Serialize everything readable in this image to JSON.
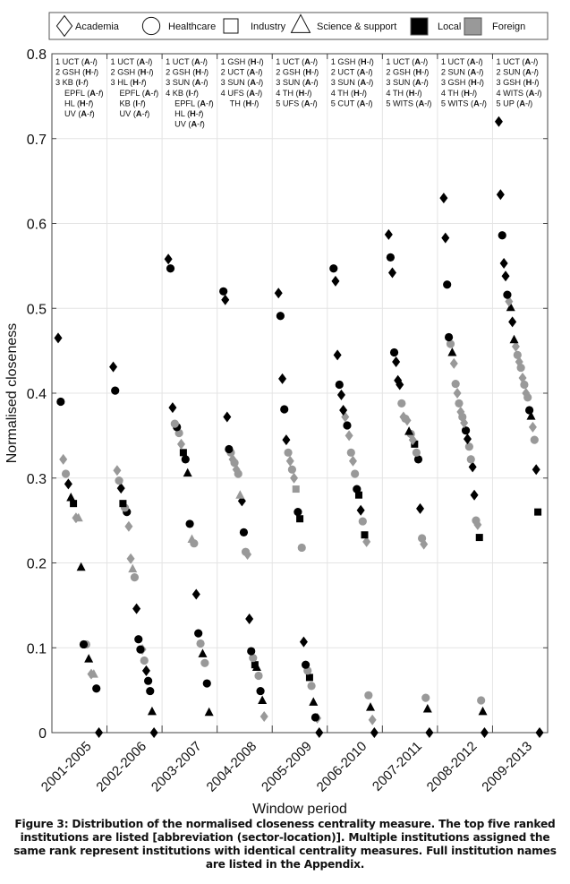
{
  "chart_data": {
    "type": "scatter",
    "title": "",
    "xlabel": "Window period",
    "ylabel": "Normalised closeness",
    "ylim": [
      0,
      0.8
    ],
    "yticks": [
      "0",
      "0.1",
      "0.2",
      "0.3",
      "0.4",
      "0.5",
      "0.6",
      "0.7",
      "0.8"
    ],
    "grid": true,
    "legend_position": "top",
    "legend": [
      {
        "key": "d",
        "label": "Academia",
        "kind": "shape"
      },
      {
        "key": "c",
        "label": "Healthcare",
        "kind": "shape"
      },
      {
        "key": "s",
        "label": "Industry",
        "kind": "shape"
      },
      {
        "key": "t",
        "label": "Science & support",
        "kind": "shape"
      },
      {
        "key": "l",
        "label": "Local",
        "kind": "fill"
      },
      {
        "key": "f",
        "label": "Foreign",
        "kind": "fill"
      }
    ],
    "colors": {
      "l": "#000000",
      "f": "#999999"
    },
    "categories": [
      "2001-2005",
      "2002-2006",
      "2003-2007",
      "2004-2008",
      "2005-2009",
      "2006-2010",
      "2007-2011",
      "2008-2012",
      "2009-2013"
    ],
    "top_ranked": [
      [
        [
          "1",
          "UCT",
          "A",
          "l"
        ],
        [
          "2",
          "GSH",
          "H",
          "l"
        ],
        [
          "3",
          "KB",
          "I",
          "f"
        ],
        [
          "",
          "EPFL",
          "A",
          "f"
        ],
        [
          "",
          "HL",
          "H",
          "f"
        ],
        [
          "",
          "UV",
          "A",
          "f"
        ]
      ],
      [
        [
          "1",
          "UCT",
          "A",
          "l"
        ],
        [
          "2",
          "GSH",
          "H",
          "l"
        ],
        [
          "3",
          "HL",
          "H",
          "f"
        ],
        [
          "",
          "EPFL",
          "A",
          "f"
        ],
        [
          "",
          "KB",
          "I",
          "f"
        ],
        [
          "",
          "UV",
          "A",
          "f"
        ]
      ],
      [
        [
          "1",
          "UCT",
          "A",
          "l"
        ],
        [
          "2",
          "GSH",
          "H",
          "l"
        ],
        [
          "3",
          "SUN",
          "A",
          "l"
        ],
        [
          "4",
          "KB",
          "I",
          "f"
        ],
        [
          "",
          "EPFL",
          "A",
          "f"
        ],
        [
          "",
          "HL",
          "H",
          "f"
        ],
        [
          "",
          "UV",
          "A",
          "f"
        ]
      ],
      [
        [
          "1",
          "GSH",
          "H",
          "l"
        ],
        [
          "2",
          "UCT",
          "A",
          "l"
        ],
        [
          "3",
          "SUN",
          "A",
          "l"
        ],
        [
          "4",
          "UFS",
          "A",
          "l"
        ],
        [
          "",
          "TH",
          "H",
          "l"
        ]
      ],
      [
        [
          "1",
          "UCT",
          "A",
          "l"
        ],
        [
          "2",
          "GSH",
          "H",
          "l"
        ],
        [
          "3",
          "SUN",
          "A",
          "l"
        ],
        [
          "4",
          "TH",
          "H",
          "l"
        ],
        [
          "5",
          "UFS",
          "A",
          "l"
        ]
      ],
      [
        [
          "1",
          "GSH",
          "H",
          "l"
        ],
        [
          "2",
          "UCT",
          "A",
          "l"
        ],
        [
          "3",
          "SUN",
          "A",
          "l"
        ],
        [
          "4",
          "TH",
          "H",
          "l"
        ],
        [
          "5",
          "CUT",
          "A",
          "l"
        ]
      ],
      [
        [
          "1",
          "UCT",
          "A",
          "l"
        ],
        [
          "2",
          "GSH",
          "H",
          "l"
        ],
        [
          "3",
          "SUN",
          "A",
          "l"
        ],
        [
          "4",
          "TH",
          "H",
          "l"
        ],
        [
          "5",
          "WITS",
          "A",
          "l"
        ]
      ],
      [
        [
          "1",
          "UCT",
          "A",
          "l"
        ],
        [
          "2",
          "SUN",
          "A",
          "l"
        ],
        [
          "3",
          "GSH",
          "H",
          "l"
        ],
        [
          "4",
          "TH",
          "H",
          "l"
        ],
        [
          "5",
          "WITS",
          "A",
          "l"
        ]
      ],
      [
        [
          "1",
          "UCT",
          "A",
          "l"
        ],
        [
          "2",
          "SUN",
          "A",
          "l"
        ],
        [
          "3",
          "GSH",
          "H",
          "l"
        ],
        [
          "4",
          "WITS",
          "A",
          "l"
        ],
        [
          "5",
          "UP",
          "A",
          "l"
        ]
      ]
    ],
    "series": [
      [
        [
          "d",
          "l",
          0.465
        ],
        [
          "c",
          "l",
          0.39
        ],
        [
          "d",
          "f",
          0.322
        ],
        [
          "c",
          "f",
          0.305
        ],
        [
          "d",
          "l",
          0.293
        ],
        [
          "t",
          "l",
          0.277
        ],
        [
          "s",
          "l",
          0.27
        ],
        [
          "d",
          "f",
          0.253
        ],
        [
          "t",
          "f",
          0.253
        ],
        [
          "t",
          "l",
          0.195
        ],
        [
          "c",
          "l",
          0.104
        ],
        [
          "c",
          "f",
          0.104
        ],
        [
          "t",
          "l",
          0.087
        ],
        [
          "d",
          "f",
          0.069
        ],
        [
          "t",
          "f",
          0.069
        ],
        [
          "c",
          "l",
          0.052
        ],
        [
          "d",
          "l",
          0.0
        ]
      ],
      [
        [
          "d",
          "l",
          0.431
        ],
        [
          "c",
          "l",
          0.403
        ],
        [
          "d",
          "f",
          0.309
        ],
        [
          "c",
          "f",
          0.297
        ],
        [
          "d",
          "l",
          0.288
        ],
        [
          "s",
          "l",
          0.27
        ],
        [
          "c",
          "f",
          0.265
        ],
        [
          "c",
          "l",
          0.26
        ],
        [
          "d",
          "f",
          0.243
        ],
        [
          "d",
          "f",
          0.205
        ],
        [
          "t",
          "f",
          0.193
        ],
        [
          "c",
          "f",
          0.183
        ],
        [
          "d",
          "l",
          0.146
        ],
        [
          "c",
          "l",
          0.11
        ],
        [
          "c",
          "l",
          0.098
        ],
        [
          "d",
          "f",
          0.098
        ],
        [
          "c",
          "f",
          0.085
        ],
        [
          "d",
          "l",
          0.073
        ],
        [
          "c",
          "l",
          0.061
        ],
        [
          "c",
          "l",
          0.049
        ],
        [
          "t",
          "l",
          0.025
        ],
        [
          "d",
          "l",
          0.0
        ]
      ],
      [
        [
          "d",
          "l",
          0.558
        ],
        [
          "c",
          "l",
          0.547
        ],
        [
          "d",
          "l",
          0.383
        ],
        [
          "c",
          "f",
          0.364
        ],
        [
          "c",
          "l",
          0.36
        ],
        [
          "c",
          "f",
          0.353
        ],
        [
          "d",
          "f",
          0.34
        ],
        [
          "s",
          "l",
          0.33
        ],
        [
          "c",
          "l",
          0.322
        ],
        [
          "t",
          "l",
          0.306
        ],
        [
          "c",
          "l",
          0.246
        ],
        [
          "t",
          "f",
          0.228
        ],
        [
          "c",
          "f",
          0.223
        ],
        [
          "d",
          "l",
          0.163
        ],
        [
          "c",
          "l",
          0.117
        ],
        [
          "c",
          "f",
          0.105
        ],
        [
          "t",
          "l",
          0.093
        ],
        [
          "c",
          "f",
          0.082
        ],
        [
          "c",
          "l",
          0.058
        ],
        [
          "t",
          "l",
          0.024
        ]
      ],
      [
        [
          "c",
          "l",
          0.52
        ],
        [
          "d",
          "l",
          0.51
        ],
        [
          "d",
          "l",
          0.372
        ],
        [
          "c",
          "l",
          0.334
        ],
        [
          "c",
          "f",
          0.33
        ],
        [
          "d",
          "f",
          0.322
        ],
        [
          "c",
          "f",
          0.318
        ],
        [
          "d",
          "f",
          0.31
        ],
        [
          "c",
          "f",
          0.305
        ],
        [
          "t",
          "f",
          0.28
        ],
        [
          "d",
          "l",
          0.273
        ],
        [
          "c",
          "l",
          0.236
        ],
        [
          "c",
          "f",
          0.213
        ],
        [
          "d",
          "f",
          0.21
        ],
        [
          "d",
          "l",
          0.134
        ],
        [
          "c",
          "l",
          0.096
        ],
        [
          "c",
          "f",
          0.088
        ],
        [
          "s",
          "l",
          0.08
        ],
        [
          "t",
          "l",
          0.077
        ],
        [
          "c",
          "f",
          0.067
        ],
        [
          "c",
          "l",
          0.049
        ],
        [
          "t",
          "l",
          0.038
        ],
        [
          "d",
          "f",
          0.019
        ]
      ],
      [
        [
          "d",
          "l",
          0.518
        ],
        [
          "c",
          "l",
          0.491
        ],
        [
          "d",
          "l",
          0.417
        ],
        [
          "c",
          "l",
          0.381
        ],
        [
          "d",
          "l",
          0.345
        ],
        [
          "c",
          "f",
          0.33
        ],
        [
          "d",
          "f",
          0.32
        ],
        [
          "c",
          "f",
          0.31
        ],
        [
          "d",
          "f",
          0.3
        ],
        [
          "s",
          "f",
          0.287
        ],
        [
          "c",
          "l",
          0.26
        ],
        [
          "s",
          "l",
          0.252
        ],
        [
          "c",
          "f",
          0.218
        ],
        [
          "d",
          "l",
          0.107
        ],
        [
          "c",
          "l",
          0.08
        ],
        [
          "c",
          "f",
          0.073
        ],
        [
          "s",
          "l",
          0.065
        ],
        [
          "c",
          "f",
          0.055
        ],
        [
          "t",
          "l",
          0.036
        ],
        [
          "c",
          "l",
          0.018
        ],
        [
          "d",
          "f",
          0.017
        ],
        [
          "d",
          "l",
          0.0
        ]
      ],
      [
        [
          "c",
          "l",
          0.547
        ],
        [
          "d",
          "l",
          0.532
        ],
        [
          "d",
          "l",
          0.445
        ],
        [
          "c",
          "l",
          0.41
        ],
        [
          "d",
          "l",
          0.398
        ],
        [
          "d",
          "l",
          0.38
        ],
        [
          "d",
          "f",
          0.372
        ],
        [
          "c",
          "l",
          0.362
        ],
        [
          "d",
          "f",
          0.35
        ],
        [
          "c",
          "f",
          0.33
        ],
        [
          "d",
          "f",
          0.32
        ],
        [
          "c",
          "f",
          0.305
        ],
        [
          "c",
          "l",
          0.287
        ],
        [
          "s",
          "l",
          0.28
        ],
        [
          "d",
          "l",
          0.262
        ],
        [
          "c",
          "f",
          0.249
        ],
        [
          "s",
          "l",
          0.233
        ],
        [
          "d",
          "f",
          0.225
        ],
        [
          "c",
          "f",
          0.044
        ],
        [
          "t",
          "l",
          0.03
        ],
        [
          "d",
          "f",
          0.015
        ],
        [
          "d",
          "l",
          0.0
        ]
      ],
      [
        [
          "d",
          "l",
          0.587
        ],
        [
          "c",
          "l",
          0.56
        ],
        [
          "d",
          "l",
          0.542
        ],
        [
          "c",
          "l",
          0.448
        ],
        [
          "d",
          "l",
          0.437
        ],
        [
          "d",
          "l",
          0.415
        ],
        [
          "d",
          "l",
          0.41
        ],
        [
          "c",
          "f",
          0.388
        ],
        [
          "d",
          "f",
          0.372
        ],
        [
          "c",
          "f",
          0.37
        ],
        [
          "d",
          "f",
          0.368
        ],
        [
          "t",
          "l",
          0.355
        ],
        [
          "c",
          "f",
          0.352
        ],
        [
          "d",
          "f",
          0.345
        ],
        [
          "s",
          "l",
          0.34
        ],
        [
          "c",
          "f",
          0.33
        ],
        [
          "c",
          "l",
          0.322
        ],
        [
          "d",
          "l",
          0.264
        ],
        [
          "c",
          "f",
          0.229
        ],
        [
          "d",
          "f",
          0.222
        ],
        [
          "c",
          "f",
          0.041
        ],
        [
          "t",
          "l",
          0.028
        ],
        [
          "d",
          "l",
          0.0
        ]
      ],
      [
        [
          "d",
          "l",
          0.63
        ],
        [
          "d",
          "l",
          0.583
        ],
        [
          "c",
          "l",
          0.528
        ],
        [
          "c",
          "l",
          0.466
        ],
        [
          "c",
          "f",
          0.458
        ],
        [
          "t",
          "l",
          0.448
        ],
        [
          "d",
          "f",
          0.435
        ],
        [
          "c",
          "f",
          0.411
        ],
        [
          "d",
          "f",
          0.4
        ],
        [
          "c",
          "f",
          0.388
        ],
        [
          "d",
          "f",
          0.378
        ],
        [
          "c",
          "f",
          0.372
        ],
        [
          "d",
          "f",
          0.365
        ],
        [
          "c",
          "l",
          0.356
        ],
        [
          "d",
          "l",
          0.346
        ],
        [
          "c",
          "f",
          0.337
        ],
        [
          "c",
          "f",
          0.322
        ],
        [
          "d",
          "l",
          0.313
        ],
        [
          "d",
          "l",
          0.28
        ],
        [
          "c",
          "f",
          0.25
        ],
        [
          "d",
          "f",
          0.245
        ],
        [
          "s",
          "l",
          0.23
        ],
        [
          "c",
          "f",
          0.038
        ],
        [
          "t",
          "l",
          0.025
        ],
        [
          "d",
          "l",
          0.0
        ]
      ],
      [
        [
          "d",
          "l",
          0.72
        ],
        [
          "d",
          "l",
          0.634
        ],
        [
          "c",
          "l",
          0.586
        ],
        [
          "d",
          "l",
          0.553
        ],
        [
          "d",
          "l",
          0.538
        ],
        [
          "c",
          "l",
          0.516
        ],
        [
          "d",
          "f",
          0.508
        ],
        [
          "t",
          "l",
          0.501
        ],
        [
          "d",
          "l",
          0.484
        ],
        [
          "t",
          "l",
          0.463
        ],
        [
          "d",
          "f",
          0.455
        ],
        [
          "c",
          "f",
          0.445
        ],
        [
          "d",
          "f",
          0.437
        ],
        [
          "c",
          "f",
          0.43
        ],
        [
          "d",
          "f",
          0.418
        ],
        [
          "c",
          "f",
          0.41
        ],
        [
          "d",
          "f",
          0.4
        ],
        [
          "c",
          "f",
          0.395
        ],
        [
          "c",
          "l",
          0.38
        ],
        [
          "t",
          "l",
          0.373
        ],
        [
          "d",
          "f",
          0.36
        ],
        [
          "c",
          "f",
          0.345
        ],
        [
          "d",
          "l",
          0.31
        ],
        [
          "s",
          "l",
          0.26
        ],
        [
          "d",
          "l",
          0.0
        ]
      ]
    ]
  },
  "caption": "Figure 3: Distribution of the normalised closeness centrality measure. The top five ranked institutions are listed [abbreviation (sector-location)]. Multiple institutions assigned the same rank represent institutions with identical centrality measures. Full institution names are listed in the Appendix."
}
